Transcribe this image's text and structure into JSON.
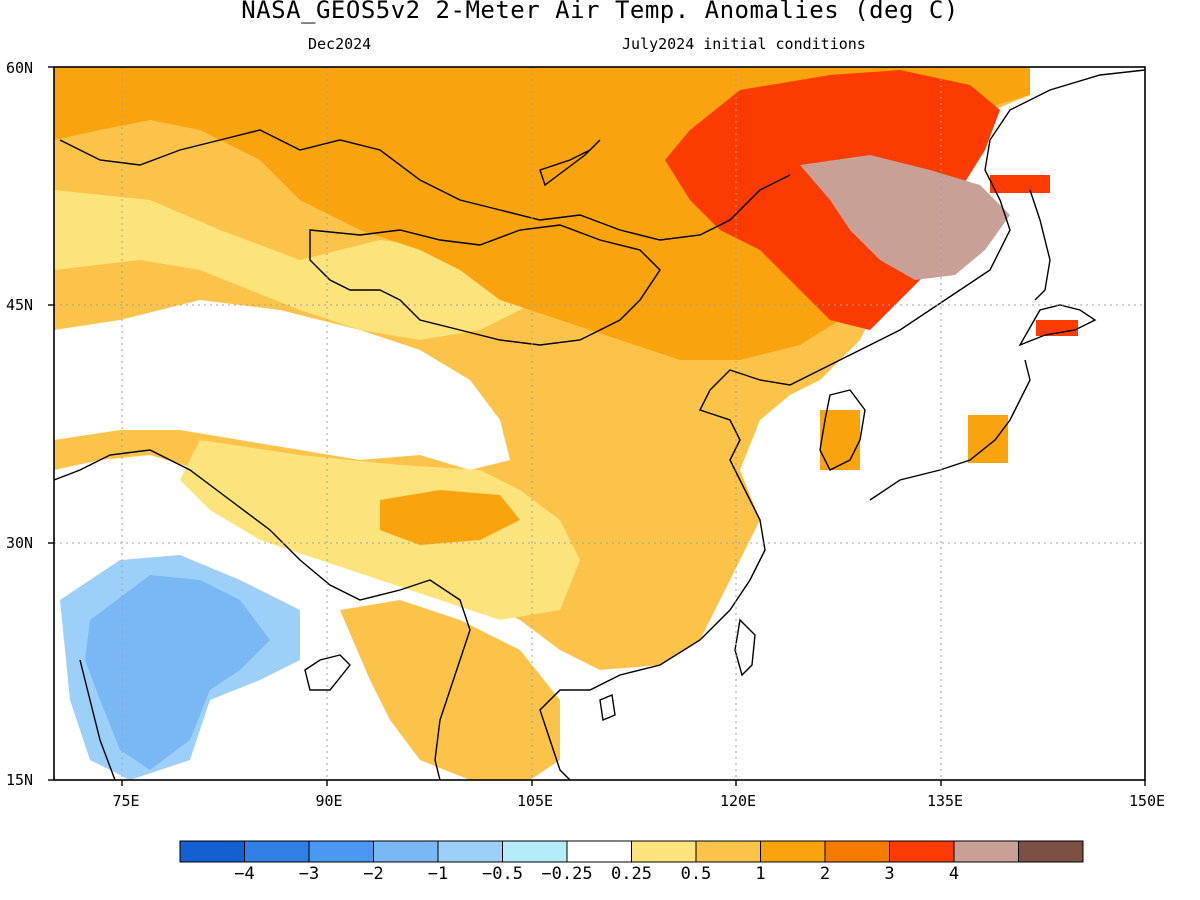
{
  "title": "NASA_GEOS5v2 2-Meter Air Temp. Anomalies (deg C)",
  "subtitle_left": "Dec2024",
  "subtitle_right": "July2024 initial conditions",
  "map": {
    "lat_labels": [
      "60N",
      "45N",
      "30N",
      "15N"
    ],
    "lon_labels": [
      "75E",
      "90E",
      "105E",
      "120E",
      "135E",
      "150E"
    ],
    "lon_range": [
      70,
      150
    ],
    "lat_range": [
      15,
      60
    ]
  },
  "colorbar": {
    "colors": [
      "#1560d0",
      "#2f7fe6",
      "#4a98f0",
      "#7ab8f5",
      "#9dd0f8",
      "#b4ecfa",
      "#ffffff",
      "#fde37c",
      "#fcc34a",
      "#f9a30e",
      "#f47b00",
      "#fc3b00",
      "#c8a096",
      "#7d5044"
    ],
    "labels": [
      "−4",
      "−3",
      "−2",
      "−1",
      "−0.5",
      "−0.25",
      "0.25",
      "0.5",
      "1",
      "2",
      "3",
      "4"
    ]
  }
}
